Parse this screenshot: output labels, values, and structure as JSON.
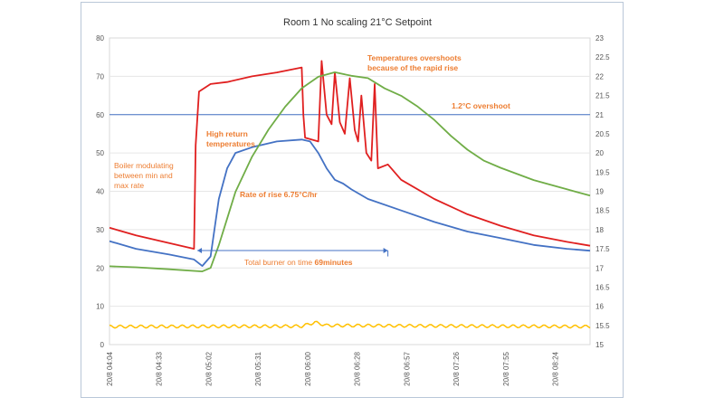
{
  "chart_data": {
    "type": "line",
    "title": "Room 1  No scaling     21°C Setpoint",
    "y_left": {
      "min": 0,
      "max": 80,
      "step": 10
    },
    "y_right": {
      "min": 15,
      "max": 23,
      "step": 0.5
    },
    "x_range": [
      "04:04",
      "08:54"
    ],
    "x_tick_labels": [
      "20/8 04:04",
      "20/8 04:33",
      "20/8 05:02",
      "20/8 05:31",
      "20/8 06:00",
      "20/8 06:28",
      "20/8 06:57",
      "20/8 07:26",
      "20/8 07:55",
      "20/8 08:24"
    ],
    "setpoint_line": {
      "axis": "right",
      "value": 21.0
    },
    "series": [
      {
        "color": "#e02020",
        "axis": "left",
        "points": [
          [
            "04:04",
            30.5
          ],
          [
            "04:20",
            28.5
          ],
          [
            "04:40",
            26.5
          ],
          [
            "04:55",
            25
          ],
          [
            "04:56",
            52
          ],
          [
            "04:58",
            66
          ],
          [
            "05:05",
            68
          ],
          [
            "05:15",
            68.5
          ],
          [
            "05:30",
            70
          ],
          [
            "05:45",
            71
          ],
          [
            "06:00",
            72.3
          ],
          [
            "06:01",
            60
          ],
          [
            "06:02",
            54
          ],
          [
            "06:10",
            53
          ],
          [
            "06:12",
            74
          ],
          [
            "06:15",
            60
          ],
          [
            "06:18",
            57.5
          ],
          [
            "06:20",
            71
          ],
          [
            "06:23",
            58
          ],
          [
            "06:26",
            55
          ],
          [
            "06:29",
            69.5
          ],
          [
            "06:32",
            56
          ],
          [
            "06:34",
            53
          ],
          [
            "06:36",
            65
          ],
          [
            "06:39",
            50
          ],
          [
            "06:42",
            48
          ],
          [
            "06:44",
            68
          ],
          [
            "06:46",
            46
          ],
          [
            "06:52",
            47
          ],
          [
            "07:00",
            43
          ],
          [
            "07:20",
            38
          ],
          [
            "07:40",
            34
          ],
          [
            "08:00",
            31
          ],
          [
            "08:20",
            28.5
          ],
          [
            "08:40",
            26.8
          ],
          [
            "08:54",
            25.8
          ]
        ]
      },
      {
        "color": "#4472c4",
        "axis": "left",
        "points": [
          [
            "04:04",
            27
          ],
          [
            "04:20",
            25
          ],
          [
            "04:40",
            23.5
          ],
          [
            "04:55",
            22.2
          ],
          [
            "05:00",
            20.5
          ],
          [
            "05:05",
            23
          ],
          [
            "05:10",
            38
          ],
          [
            "05:15",
            46
          ],
          [
            "05:20",
            50
          ],
          [
            "05:30",
            51.5
          ],
          [
            "05:45",
            53
          ],
          [
            "06:00",
            53.5
          ],
          [
            "06:05",
            53
          ],
          [
            "06:10",
            50
          ],
          [
            "06:15",
            46
          ],
          [
            "06:20",
            43
          ],
          [
            "06:25",
            42
          ],
          [
            "06:30",
            40.5
          ],
          [
            "06:40",
            38
          ],
          [
            "07:00",
            35
          ],
          [
            "07:20",
            32
          ],
          [
            "07:40",
            29.5
          ],
          [
            "08:00",
            27.8
          ],
          [
            "08:20",
            26
          ],
          [
            "08:40",
            25
          ],
          [
            "08:54",
            24.5
          ]
        ]
      },
      {
        "color": "#70ad47",
        "axis": "right",
        "points": [
          [
            "04:04",
            17.05
          ],
          [
            "04:20",
            17.02
          ],
          [
            "04:40",
            16.97
          ],
          [
            "05:00",
            16.9
          ],
          [
            "05:05",
            17.0
          ],
          [
            "05:10",
            17.6
          ],
          [
            "05:15",
            18.3
          ],
          [
            "05:20",
            19.0
          ],
          [
            "05:30",
            19.9
          ],
          [
            "05:40",
            20.6
          ],
          [
            "05:50",
            21.2
          ],
          [
            "06:00",
            21.7
          ],
          [
            "06:10",
            22.0
          ],
          [
            "06:20",
            22.1
          ],
          [
            "06:30",
            22.0
          ],
          [
            "06:40",
            21.95
          ],
          [
            "06:50",
            21.7
          ],
          [
            "07:00",
            21.5
          ],
          [
            "07:10",
            21.2
          ],
          [
            "07:20",
            20.85
          ],
          [
            "07:30",
            20.45
          ],
          [
            "07:40",
            20.1
          ],
          [
            "07:50",
            19.8
          ],
          [
            "08:00",
            19.6
          ],
          [
            "08:20",
            19.3
          ],
          [
            "08:40",
            19.05
          ],
          [
            "08:54",
            18.9
          ]
        ]
      },
      {
        "color": "#ffc000",
        "axis": "left",
        "points": [
          [
            "04:04",
            4.7
          ],
          [
            "06:00",
            4.8
          ],
          [
            "06:08",
            5.8
          ],
          [
            "06:15",
            5.0
          ],
          [
            "08:54",
            4.7
          ]
        ]
      }
    ],
    "annotations": {
      "boiler": [
        "Boiler modulating",
        "between min and",
        "max rate"
      ],
      "return": [
        "High return",
        "temperatures"
      ],
      "overshoots": [
        "Temperatures overshoots",
        "because of the rapid rise"
      ],
      "overshoot_val": "1.2°C overshoot",
      "rate": "Rate of rise 6.75°C/hr",
      "burner_text": "Total burner on time ",
      "burner_bold": "69minutes"
    },
    "burner_span": [
      "04:57",
      "06:52"
    ]
  }
}
